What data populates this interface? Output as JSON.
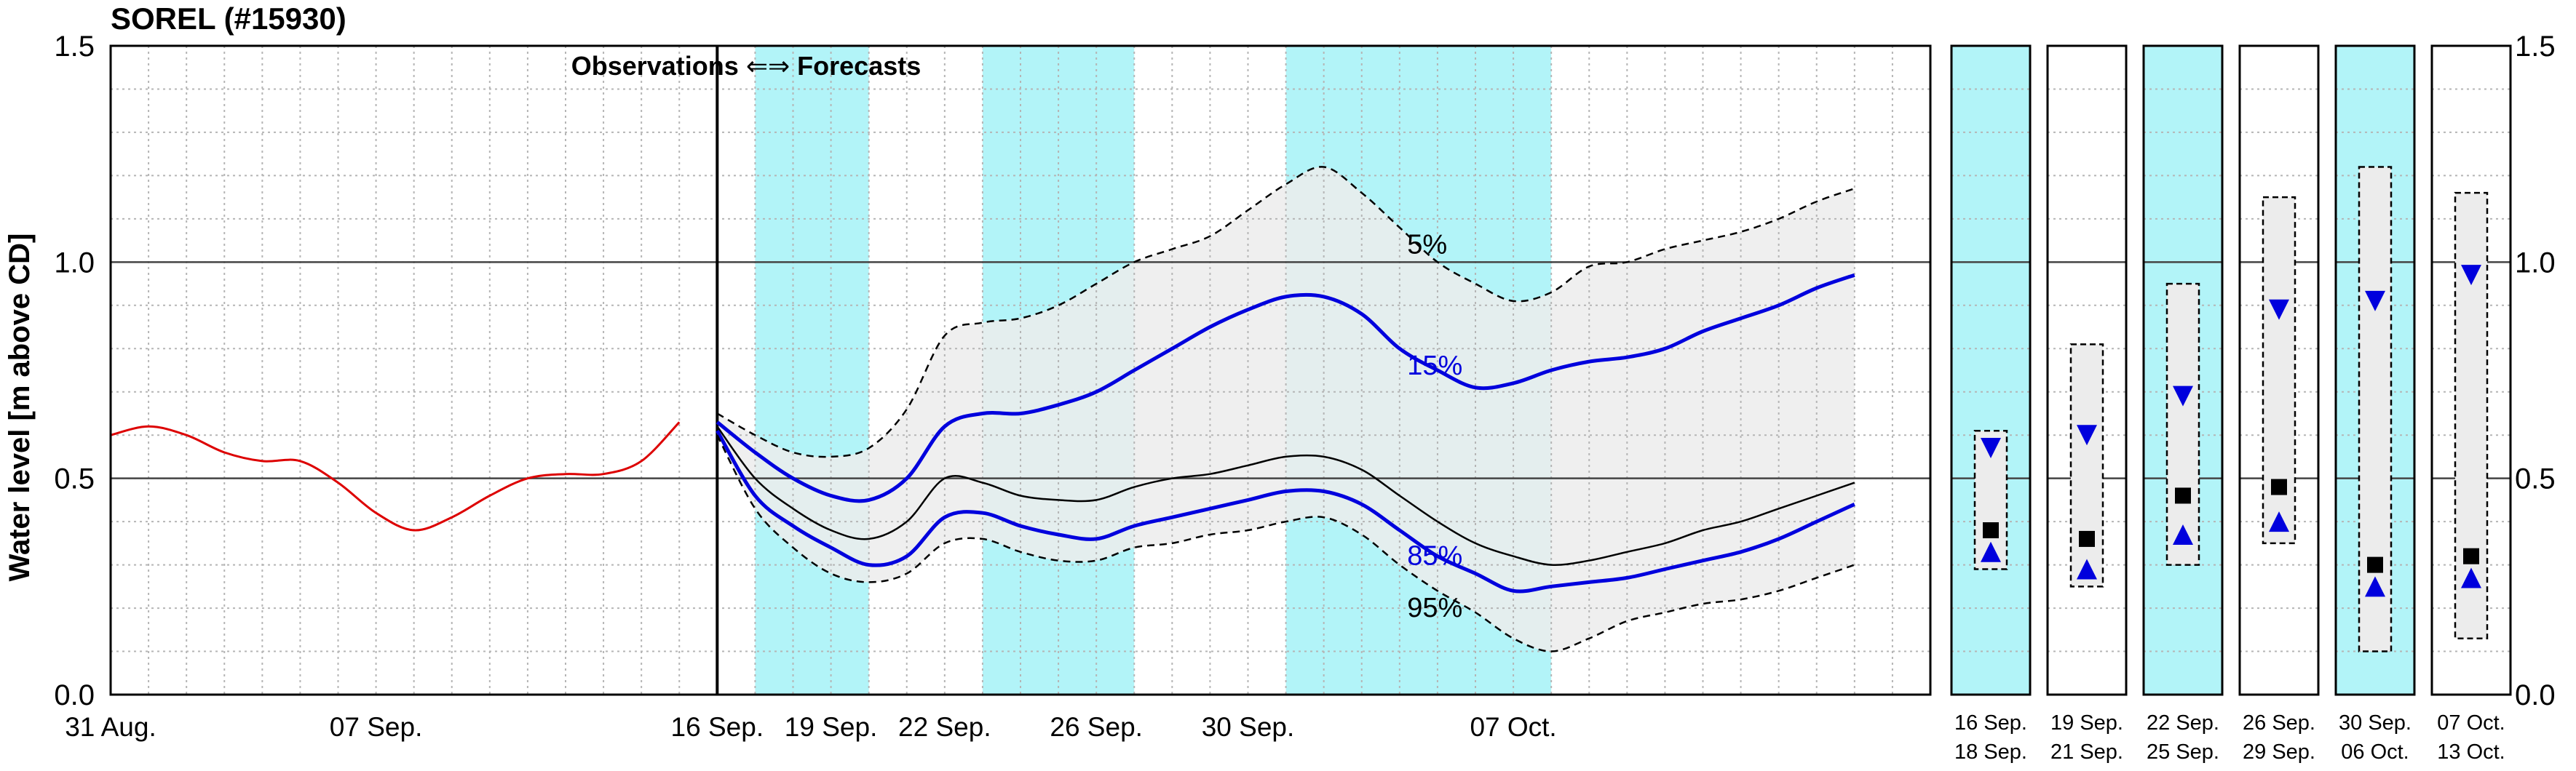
{
  "chart_data": {
    "type": "line",
    "title": "SOREL (#15930)",
    "ylabel": "Water level [m above CD]",
    "ylim": [
      0,
      1.5
    ],
    "yticks": [
      "0.0",
      "0.5",
      "1.0",
      "1.5"
    ],
    "grid": true,
    "annotation": "Observations ⇐⇒ Forecasts",
    "annotation_left": "Observations",
    "annotation_arrow": "⇐⇒",
    "annotation_right": "Forecasts",
    "main_panel": {
      "xlim": [
        0,
        48
      ],
      "forecast_start": 16,
      "xtick_labels": [
        {
          "x": 0,
          "label": "31 Aug."
        },
        {
          "x": 7,
          "label": "07 Sep."
        },
        {
          "x": 16,
          "label": "16 Sep."
        },
        {
          "x": 19,
          "label": "19 Sep."
        },
        {
          "x": 22,
          "label": "22 Sep."
        },
        {
          "x": 26,
          "label": "26 Sep."
        },
        {
          "x": 30,
          "label": "30 Sep."
        },
        {
          "x": 37,
          "label": "07 Oct."
        }
      ],
      "shaded_periods": [
        [
          17,
          20
        ],
        [
          23,
          27
        ],
        [
          31,
          38
        ]
      ],
      "shade_color": "#b2f4f8",
      "observations": {
        "color": "#dd0000",
        "x": [
          0,
          1,
          2,
          3,
          4,
          5,
          6,
          7,
          8,
          9,
          10,
          11,
          12,
          13,
          14,
          15
        ],
        "y": [
          0.6,
          0.62,
          0.6,
          0.56,
          0.54,
          0.54,
          0.49,
          0.42,
          0.38,
          0.41,
          0.46,
          0.5,
          0.51,
          0.51,
          0.54,
          0.63
        ]
      },
      "forecast_x": [
        16,
        17,
        18,
        19,
        20,
        21,
        22,
        23,
        24,
        25,
        26,
        27,
        28,
        29,
        30,
        31,
        32,
        33,
        34,
        35,
        36,
        37,
        38,
        39,
        40,
        41,
        42,
        43,
        44,
        45,
        46
      ],
      "series": [
        {
          "name": "5%",
          "style": "dashed",
          "color": "#000000",
          "y": [
            0.65,
            0.6,
            0.56,
            0.55,
            0.57,
            0.66,
            0.83,
            0.86,
            0.87,
            0.9,
            0.95,
            1.0,
            1.03,
            1.06,
            1.12,
            1.18,
            1.22,
            1.16,
            1.08,
            1.0,
            0.95,
            0.91,
            0.93,
            0.99,
            1.0,
            1.03,
            1.05,
            1.07,
            1.1,
            1.14,
            1.17
          ]
        },
        {
          "name": "15%",
          "style": "solid",
          "color": "#0000dd",
          "y": [
            0.63,
            0.56,
            0.5,
            0.46,
            0.45,
            0.5,
            0.62,
            0.65,
            0.65,
            0.67,
            0.7,
            0.75,
            0.8,
            0.85,
            0.89,
            0.92,
            0.92,
            0.88,
            0.8,
            0.75,
            0.71,
            0.72,
            0.75,
            0.77,
            0.78,
            0.8,
            0.84,
            0.87,
            0.9,
            0.94,
            0.97
          ]
        },
        {
          "name": "",
          "style": "solid-thin",
          "color": "#000000",
          "y": [
            0.62,
            0.5,
            0.43,
            0.38,
            0.36,
            0.4,
            0.5,
            0.49,
            0.46,
            0.45,
            0.45,
            0.48,
            0.5,
            0.51,
            0.53,
            0.55,
            0.55,
            0.52,
            0.46,
            0.4,
            0.35,
            0.32,
            0.3,
            0.31,
            0.33,
            0.35,
            0.38,
            0.4,
            0.43,
            0.46,
            0.49
          ]
        },
        {
          "name": "85%",
          "style": "solid",
          "color": "#0000dd",
          "y": [
            0.61,
            0.46,
            0.39,
            0.34,
            0.3,
            0.32,
            0.41,
            0.42,
            0.39,
            0.37,
            0.36,
            0.39,
            0.41,
            0.43,
            0.45,
            0.47,
            0.47,
            0.44,
            0.38,
            0.32,
            0.28,
            0.24,
            0.25,
            0.26,
            0.27,
            0.29,
            0.31,
            0.33,
            0.36,
            0.4,
            0.44
          ]
        },
        {
          "name": "95%",
          "style": "dashed",
          "color": "#000000",
          "y": [
            0.6,
            0.43,
            0.34,
            0.28,
            0.26,
            0.28,
            0.35,
            0.36,
            0.33,
            0.31,
            0.31,
            0.34,
            0.35,
            0.37,
            0.38,
            0.4,
            0.41,
            0.37,
            0.3,
            0.24,
            0.19,
            0.13,
            0.1,
            0.13,
            0.17,
            0.19,
            0.21,
            0.22,
            0.24,
            0.27,
            0.3
          ]
        }
      ],
      "band": {
        "color": "#ececec"
      },
      "series_label_positions": [
        {
          "name": "5%",
          "x": 34.2,
          "y": 1.02,
          "color": "#000000"
        },
        {
          "name": "15%",
          "x": 34.2,
          "y": 0.74,
          "color": "#0000dd"
        },
        {
          "name": "85%",
          "x": 34.2,
          "y": 0.3,
          "color": "#0000dd"
        },
        {
          "name": "95%",
          "x": 34.2,
          "y": 0.18,
          "color": "#000000"
        }
      ]
    },
    "period_panels": [
      {
        "label_top": "16 Sep.",
        "label_bottom": "18 Sep.",
        "shaded": true,
        "box_high": 0.61,
        "box_low": 0.29,
        "median": 0.38,
        "high": 0.57,
        "low": 0.33
      },
      {
        "label_top": "19 Sep.",
        "label_bottom": "21 Sep.",
        "shaded": false,
        "box_high": 0.81,
        "box_low": 0.25,
        "median": 0.36,
        "high": 0.6,
        "low": 0.29
      },
      {
        "label_top": "22 Sep.",
        "label_bottom": "25 Sep.",
        "shaded": true,
        "box_high": 0.95,
        "box_low": 0.3,
        "median": 0.46,
        "high": 0.69,
        "low": 0.37
      },
      {
        "label_top": "26 Sep.",
        "label_bottom": "29 Sep.",
        "shaded": false,
        "box_high": 1.15,
        "box_low": 0.35,
        "median": 0.48,
        "high": 0.89,
        "low": 0.4
      },
      {
        "label_top": "30 Sep.",
        "label_bottom": "06 Oct.",
        "shaded": true,
        "box_high": 1.22,
        "box_low": 0.1,
        "median": 0.3,
        "high": 0.91,
        "low": 0.25
      },
      {
        "label_top": "07 Oct.",
        "label_bottom": "13 Oct.",
        "shaded": false,
        "box_high": 1.16,
        "box_low": 0.13,
        "median": 0.32,
        "high": 0.97,
        "low": 0.27
      }
    ]
  }
}
